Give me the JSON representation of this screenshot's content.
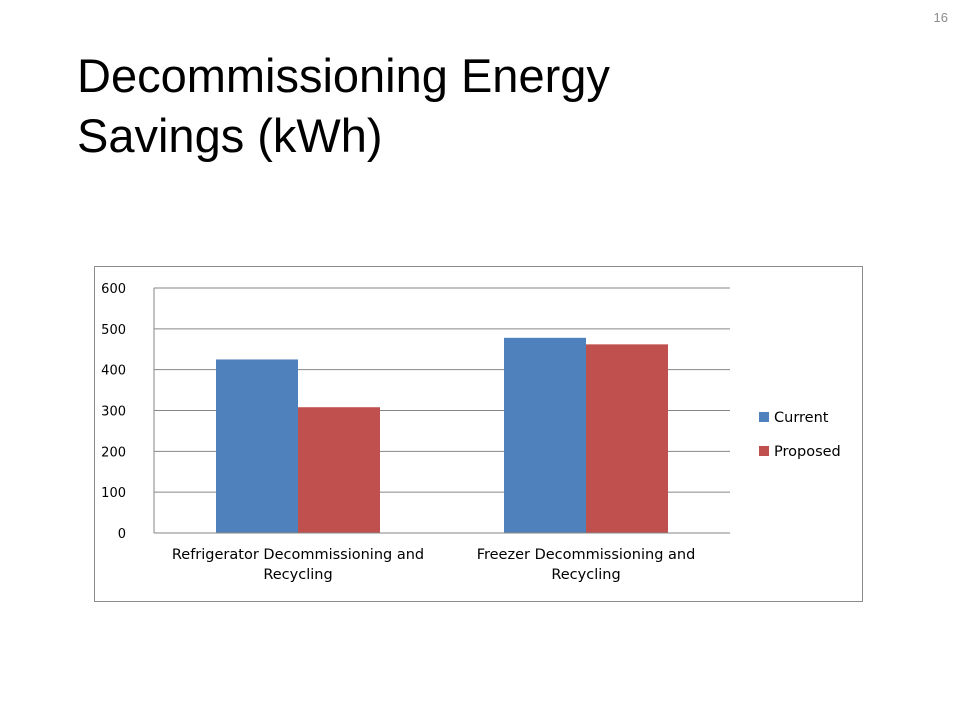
{
  "slide": {
    "number": "16",
    "title_line1": "Decommissioning Energy",
    "title_line2": "Savings (kWh)"
  },
  "chart_data": {
    "type": "bar",
    "categories": [
      [
        "Refrigerator Decommissioning and",
        "Recycling"
      ],
      [
        "Freezer Decommissioning and",
        "Recycling"
      ]
    ],
    "series": [
      {
        "name": "Current",
        "values": [
          425,
          478
        ],
        "color": "#4f81bd"
      },
      {
        "name": "Proposed",
        "values": [
          308,
          462
        ],
        "color": "#c0504d"
      }
    ],
    "yticks": [
      0,
      100,
      200,
      300,
      400,
      500,
      600
    ],
    "ylim": [
      0,
      600
    ],
    "grid": true,
    "legend": "right"
  }
}
